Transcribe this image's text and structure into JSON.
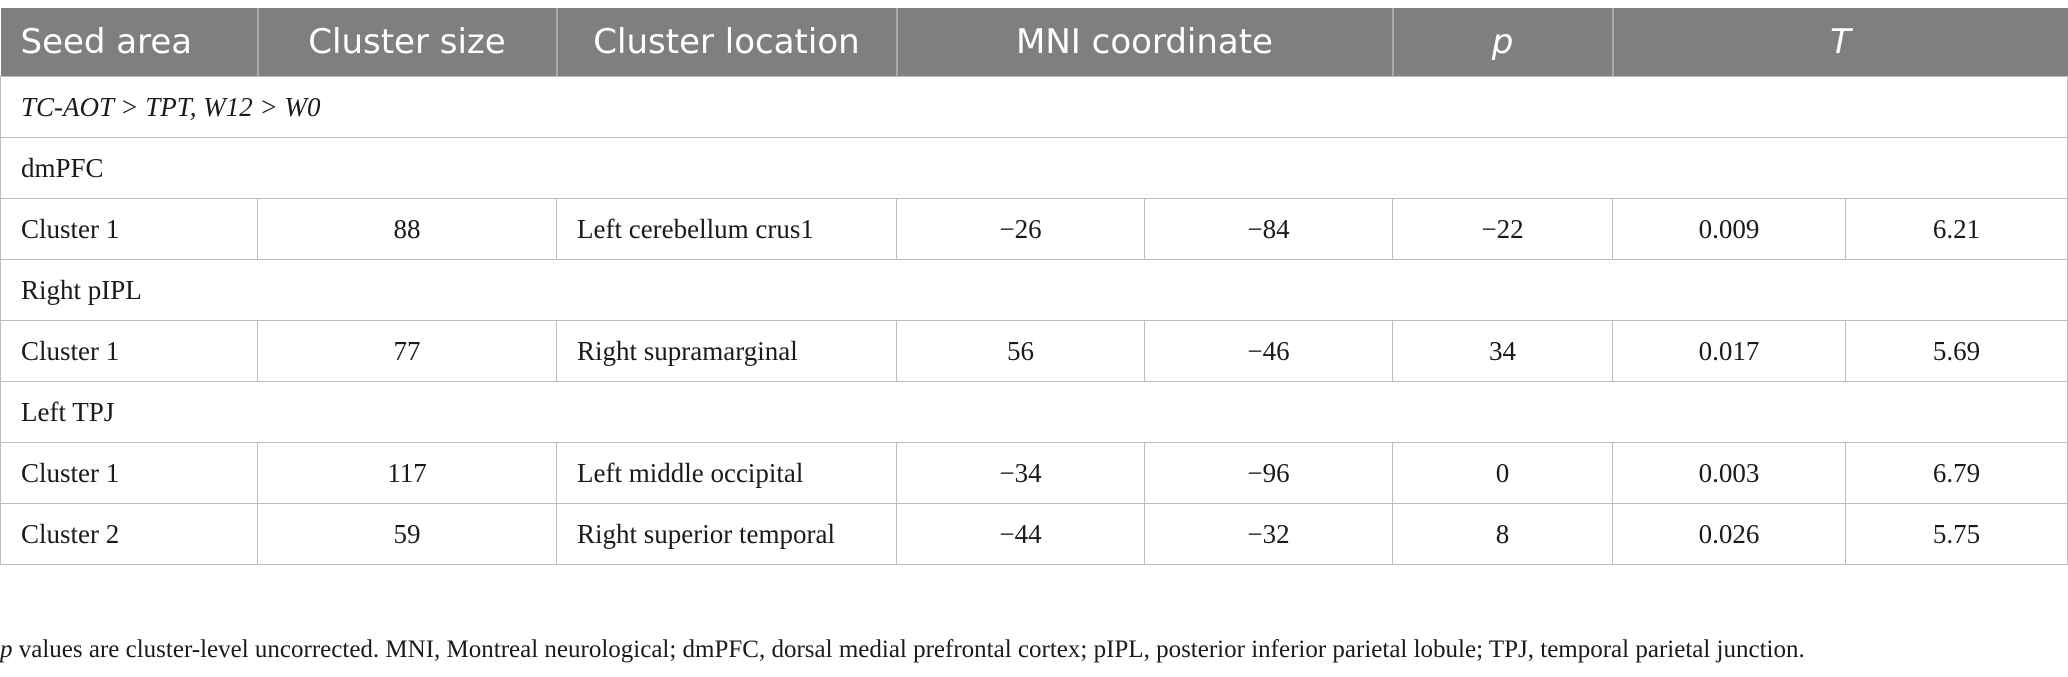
{
  "table": {
    "headers": {
      "seed_area": "Seed area",
      "cluster_size": "Cluster size",
      "cluster_location": "Cluster location",
      "mni_coordinate": "MNI coordinate",
      "p": "p",
      "t": "T"
    },
    "contrast": "TC-AOT > TPT, W12 > W0",
    "sections": [
      {
        "seed": "dmPFC",
        "rows": [
          {
            "cluster": "Cluster 1",
            "size": "88",
            "location": "Left cerebellum crus1",
            "x": "−26",
            "y": "−84",
            "z": "−22",
            "p": "0.009",
            "t": "6.21"
          }
        ]
      },
      {
        "seed": "Right pIPL",
        "rows": [
          {
            "cluster": "Cluster 1",
            "size": "77",
            "location": "Right supramarginal",
            "x": "56",
            "y": "−46",
            "z": "34",
            "p": "0.017",
            "t": "5.69"
          }
        ]
      },
      {
        "seed": "Left TPJ",
        "rows": [
          {
            "cluster": "Cluster 1",
            "size": "117",
            "location": "Left middle occipital",
            "x": "−34",
            "y": "−96",
            "z": "0",
            "p": "0.003",
            "t": "6.79"
          },
          {
            "cluster": "Cluster 2",
            "size": "59",
            "location": "Right superior temporal",
            "x": "−44",
            "y": "−32",
            "z": "8",
            "p": "0.026",
            "t": "5.75"
          }
        ]
      }
    ]
  },
  "footnote": {
    "p_symbol": "p",
    "text": " values are cluster-level uncorrected. MNI, Montreal neurological; dmPFC, dorsal medial prefrontal cortex; pIPL, posterior inferior parietal lobule; TPJ, temporal parietal junction."
  }
}
